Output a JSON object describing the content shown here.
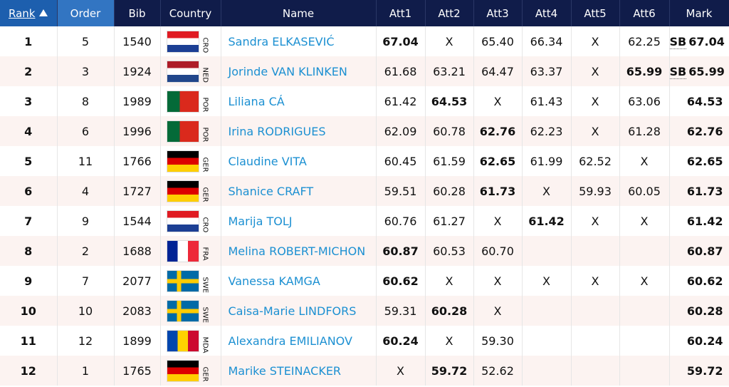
{
  "table": {
    "columns": [
      "Rank",
      "Order",
      "Bib",
      "Country",
      "Name",
      "Att1",
      "Att2",
      "Att3",
      "Att4",
      "Att5",
      "Att6",
      "Mark"
    ],
    "rows": [
      {
        "rank": "1",
        "order": "5",
        "bib": "1540",
        "country": "CRO",
        "name": "Sandra ELKASEVIĆ",
        "attempts": [
          "67.04",
          "X",
          "65.40",
          "66.34",
          "X",
          "62.25"
        ],
        "note": "SB",
        "mark": "67.04"
      },
      {
        "rank": "2",
        "order": "3",
        "bib": "1924",
        "country": "NED",
        "name": "Jorinde VAN KLINKEN",
        "attempts": [
          "61.68",
          "63.21",
          "64.47",
          "63.37",
          "X",
          "65.99"
        ],
        "note": "SB",
        "mark": "65.99"
      },
      {
        "rank": "3",
        "order": "8",
        "bib": "1989",
        "country": "POR",
        "name": "Liliana CÁ",
        "attempts": [
          "61.42",
          "64.53",
          "X",
          "61.43",
          "X",
          "63.06"
        ],
        "mark": "64.53"
      },
      {
        "rank": "4",
        "order": "6",
        "bib": "1996",
        "country": "POR",
        "name": "Irina RODRIGUES",
        "attempts": [
          "62.09",
          "60.78",
          "62.76",
          "62.23",
          "X",
          "61.28"
        ],
        "mark": "62.76"
      },
      {
        "rank": "5",
        "order": "11",
        "bib": "1766",
        "country": "GER",
        "name": "Claudine VITA",
        "attempts": [
          "60.45",
          "61.59",
          "62.65",
          "61.99",
          "62.52",
          "X"
        ],
        "mark": "62.65"
      },
      {
        "rank": "6",
        "order": "4",
        "bib": "1727",
        "country": "GER",
        "name": "Shanice CRAFT",
        "attempts": [
          "59.51",
          "60.28",
          "61.73",
          "X",
          "59.93",
          "60.05"
        ],
        "mark": "61.73"
      },
      {
        "rank": "7",
        "order": "9",
        "bib": "1544",
        "country": "CRO",
        "name": "Marija TOLJ",
        "attempts": [
          "60.76",
          "61.27",
          "X",
          "61.42",
          "X",
          "X"
        ],
        "mark": "61.42"
      },
      {
        "rank": "8",
        "order": "2",
        "bib": "1688",
        "country": "FRA",
        "name": "Melina ROBERT-MICHON",
        "attempts": [
          "60.87",
          "60.53",
          "60.70"
        ],
        "mark": "60.87"
      },
      {
        "rank": "9",
        "order": "7",
        "bib": "2077",
        "country": "SWE",
        "name": "Vanessa KAMGA",
        "attempts": [
          "60.62",
          "X",
          "X",
          "X",
          "X",
          "X"
        ],
        "mark": "60.62"
      },
      {
        "rank": "10",
        "order": "10",
        "bib": "2083",
        "country": "SWE",
        "name": "Caisa-Marie LINDFORS",
        "attempts": [
          "59.31",
          "60.28",
          "X"
        ],
        "mark": "60.28"
      },
      {
        "rank": "11",
        "order": "12",
        "bib": "1899",
        "country": "MDA",
        "name": "Alexandra EMILIANOV",
        "attempts": [
          "60.24",
          "X",
          "59.30"
        ],
        "mark": "60.24"
      },
      {
        "rank": "12",
        "order": "1",
        "bib": "1765",
        "country": "GER",
        "name": "Marike STEINACKER",
        "attempts": [
          "X",
          "59.72",
          "52.62"
        ],
        "mark": "59.72"
      }
    ]
  }
}
